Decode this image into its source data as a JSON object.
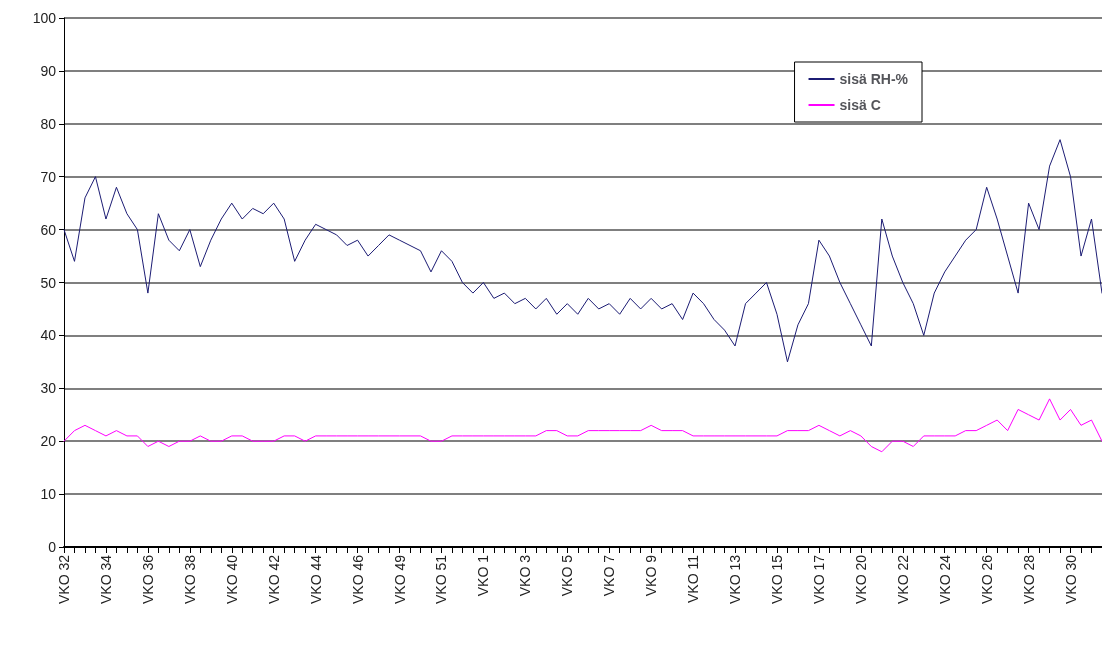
{
  "chart_data": {
    "type": "line",
    "categories": [
      "VKO 32",
      null,
      null,
      null,
      "VKO 34",
      null,
      null,
      null,
      "VKO 36",
      null,
      null,
      null,
      "VKO 38",
      null,
      null,
      null,
      "VKO 40",
      null,
      null,
      null,
      "VKO 42",
      null,
      null,
      null,
      "VKO 44",
      null,
      null,
      null,
      "VKO 46",
      null,
      null,
      null,
      "VKO 49",
      null,
      null,
      null,
      "VKO 51",
      null,
      null,
      null,
      "VKO 1",
      null,
      null,
      null,
      "VKO 3",
      null,
      null,
      null,
      "VKO 5",
      null,
      null,
      null,
      "VKO 7",
      null,
      null,
      null,
      "VKO 9",
      null,
      null,
      null,
      "VKO 11",
      null,
      null,
      null,
      "VKO 13",
      null,
      null,
      null,
      "VKO 15",
      null,
      null,
      null,
      "VKO 17",
      null,
      null,
      null,
      "VKO 20",
      null,
      null,
      null,
      "VKO 22",
      null,
      null,
      null,
      "VKO 24",
      null,
      null,
      null,
      "VKO 26",
      null,
      null,
      null,
      "VKO 28",
      null,
      null,
      null,
      "VKO 30",
      null,
      null,
      null
    ],
    "series": [
      {
        "name": "sisä RH-%",
        "color": "#1c1c74",
        "values": [
          60,
          54,
          66,
          70,
          62,
          68,
          63,
          60,
          48,
          63,
          58,
          56,
          60,
          53,
          58,
          62,
          65,
          62,
          64,
          63,
          65,
          62,
          54,
          58,
          61,
          60,
          59,
          57,
          58,
          55,
          57,
          59,
          58,
          57,
          56,
          52,
          56,
          54,
          50,
          48,
          50,
          47,
          48,
          46,
          47,
          45,
          47,
          44,
          46,
          44,
          47,
          45,
          46,
          44,
          47,
          45,
          47,
          45,
          46,
          43,
          48,
          46,
          43,
          41,
          38,
          46,
          48,
          50,
          44,
          35,
          42,
          46,
          58,
          55,
          50,
          46,
          42,
          38,
          62,
          55,
          50,
          46,
          40,
          48,
          52,
          55,
          58,
          60,
          68,
          62,
          55,
          48,
          65,
          60,
          72,
          77,
          70,
          55,
          62,
          48
        ]
      },
      {
        "name": "sisä C",
        "color": "#ff00ff",
        "values": [
          20,
          22,
          23,
          22,
          21,
          22,
          21,
          21,
          19,
          20,
          19,
          20,
          20,
          21,
          20,
          20,
          21,
          21,
          20,
          20,
          20,
          21,
          21,
          20,
          21,
          21,
          21,
          21,
          21,
          21,
          21,
          21,
          21,
          21,
          21,
          20,
          20,
          21,
          21,
          21,
          21,
          21,
          21,
          21,
          21,
          21,
          22,
          22,
          21,
          21,
          22,
          22,
          22,
          22,
          22,
          22,
          23,
          22,
          22,
          22,
          21,
          21,
          21,
          21,
          21,
          21,
          21,
          21,
          21,
          22,
          22,
          22,
          23,
          22,
          21,
          22,
          21,
          19,
          18,
          20,
          20,
          19,
          21,
          21,
          21,
          21,
          22,
          22,
          23,
          24,
          22,
          26,
          25,
          24,
          28,
          24,
          26,
          23,
          24,
          20
        ]
      }
    ],
    "ylim": [
      0,
      100
    ],
    "yticks": [
      0,
      10,
      20,
      30,
      40,
      50,
      60,
      70,
      80,
      90,
      100
    ],
    "grid": "y",
    "legend": "top right",
    "marker": "none",
    "line_style": "solid"
  }
}
